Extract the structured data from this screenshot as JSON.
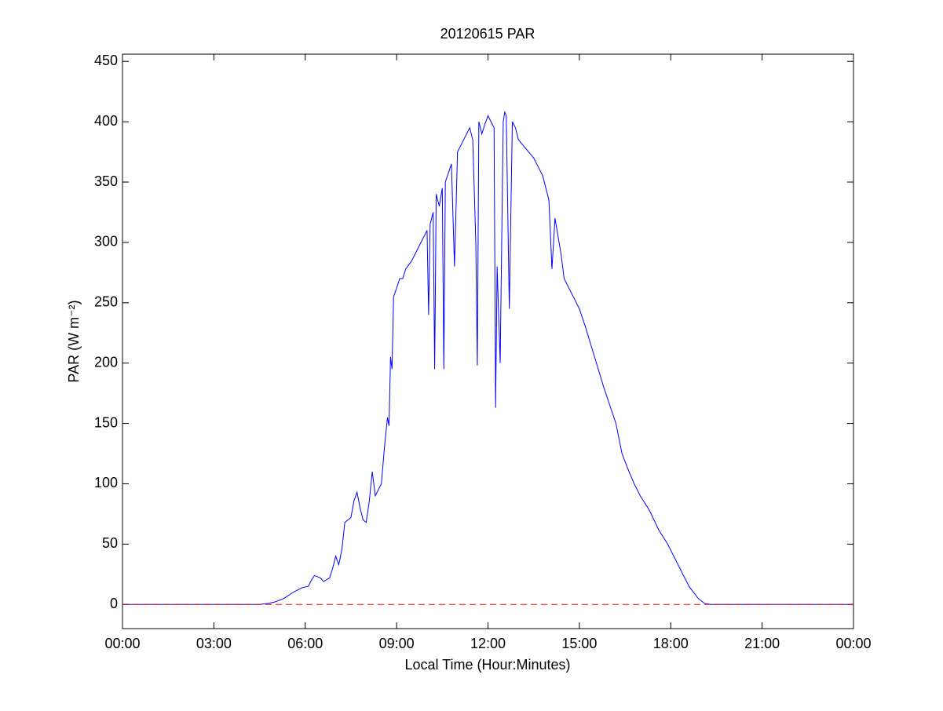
{
  "chart_data": {
    "type": "line",
    "title": "20120615 PAR",
    "xlabel": "Local Time (Hour:Minutes)",
    "ylabel": "PAR (W m⁻²)",
    "xlim": [
      0,
      24
    ],
    "xticks": [
      {
        "value": 0,
        "label": "00:00"
      },
      {
        "value": 3,
        "label": "03:00"
      },
      {
        "value": 6,
        "label": "06:00"
      },
      {
        "value": 9,
        "label": "09:00"
      },
      {
        "value": 12,
        "label": "12:00"
      },
      {
        "value": 15,
        "label": "15:00"
      },
      {
        "value": 18,
        "label": "18:00"
      },
      {
        "value": 21,
        "label": "21:00"
      },
      {
        "value": 24,
        "label": "00:00"
      }
    ],
    "ylim": [
      -20,
      456
    ],
    "yticks": [
      0,
      50,
      100,
      150,
      200,
      250,
      300,
      350,
      400,
      450
    ],
    "grid": false,
    "reference_line": {
      "y": 0,
      "color": "#ff0000"
    },
    "series": [
      {
        "color": "#0000ff",
        "x": [
          0,
          4.5,
          4.8,
          5.0,
          5.3,
          5.6,
          5.9,
          6.1,
          6.2,
          6.3,
          6.5,
          6.6,
          6.8,
          6.9,
          7.0,
          7.1,
          7.2,
          7.3,
          7.5,
          7.6,
          7.7,
          7.8,
          7.9,
          8.0,
          8.1,
          8.2,
          8.3,
          8.4,
          8.5,
          8.6,
          8.7,
          8.75,
          8.8,
          8.85,
          8.9,
          9.0,
          9.1,
          9.2,
          9.3,
          9.5,
          9.7,
          9.9,
          10.0,
          10.05,
          10.1,
          10.2,
          10.25,
          10.3,
          10.4,
          10.5,
          10.55,
          10.6,
          10.8,
          10.9,
          11.0,
          11.2,
          11.4,
          11.5,
          11.6,
          11.65,
          11.7,
          11.8,
          11.9,
          12.0,
          12.1,
          12.2,
          12.25,
          12.3,
          12.4,
          12.5,
          12.55,
          12.6,
          12.7,
          12.8,
          12.9,
          13.0,
          13.5,
          13.8,
          14.0,
          14.1,
          14.2,
          14.4,
          14.5,
          14.7,
          15.0,
          15.2,
          15.5,
          15.8,
          16.0,
          16.2,
          16.4,
          16.6,
          16.8,
          17.0,
          17.3,
          17.6,
          17.9,
          18.0,
          18.3,
          18.6,
          18.9,
          19.1,
          19.3,
          24
        ],
        "values": [
          0,
          0,
          1,
          2,
          5,
          10,
          14,
          15,
          20,
          24,
          22,
          19,
          22,
          30,
          40,
          33,
          45,
          68,
          72,
          86,
          93,
          80,
          70,
          68,
          85,
          110,
          90,
          95,
          100,
          130,
          155,
          148,
          205,
          195,
          255,
          262,
          270,
          270,
          278,
          285,
          295,
          305,
          310,
          240,
          315,
          325,
          195,
          340,
          330,
          345,
          195,
          350,
          365,
          280,
          375,
          385,
          395,
          385,
          300,
          198,
          400,
          390,
          398,
          405,
          400,
          395,
          163,
          280,
          200,
          400,
          408,
          405,
          245,
          400,
          395,
          385,
          370,
          355,
          335,
          278,
          320,
          290,
          270,
          260,
          245,
          230,
          205,
          180,
          165,
          150,
          125,
          112,
          100,
          90,
          78,
          62,
          50,
          45,
          30,
          15,
          5,
          1,
          0,
          0
        ]
      }
    ]
  }
}
